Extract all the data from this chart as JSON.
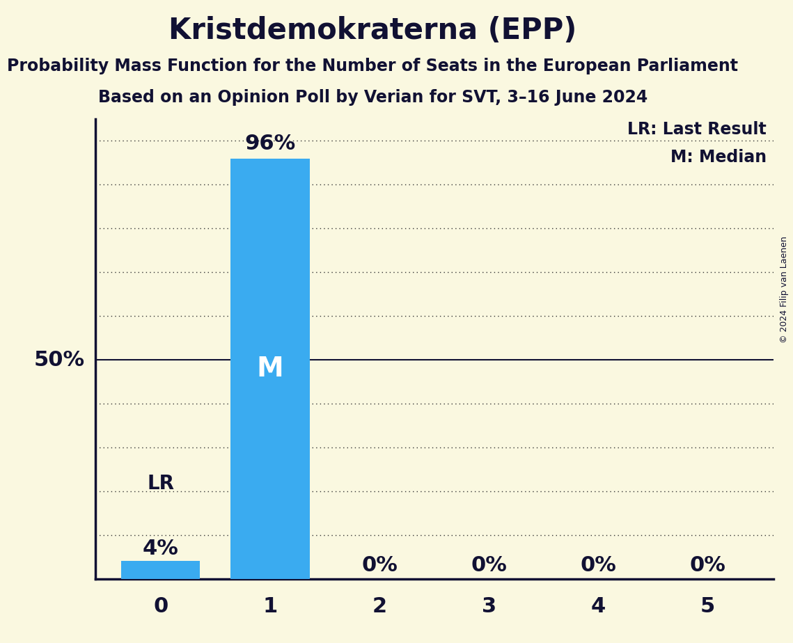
{
  "title": "Kristdemokraterna (EPP)",
  "subtitle1": "Probability Mass Function for the Number of Seats in the European Parliament",
  "subtitle2": "Based on an Opinion Poll by Verian for SVT, 3–16 June 2024",
  "copyright": "© 2024 Filip van Laenen",
  "categories": [
    0,
    1,
    2,
    3,
    4,
    5
  ],
  "values": [
    0.04,
    0.96,
    0.0,
    0.0,
    0.0,
    0.0
  ],
  "bar_color": "#3aabf0",
  "background_color": "#faf8e0",
  "median": 1,
  "last_result": 0,
  "legend_lr": "LR: Last Result",
  "legend_m": "M: Median",
  "ylim": [
    0,
    1.05
  ],
  "ylabel_50pct": "50%",
  "title_fontsize": 30,
  "subtitle_fontsize": 17,
  "axis_tick_fontsize": 22,
  "pct_label_fontsize": 22,
  "legend_fontsize": 17,
  "median_label_fontsize": 28,
  "lr_label_fontsize": 20,
  "copyright_fontsize": 9,
  "text_color": "#111133",
  "grid_color": "#333333",
  "solid_line_50_color": "#111133"
}
